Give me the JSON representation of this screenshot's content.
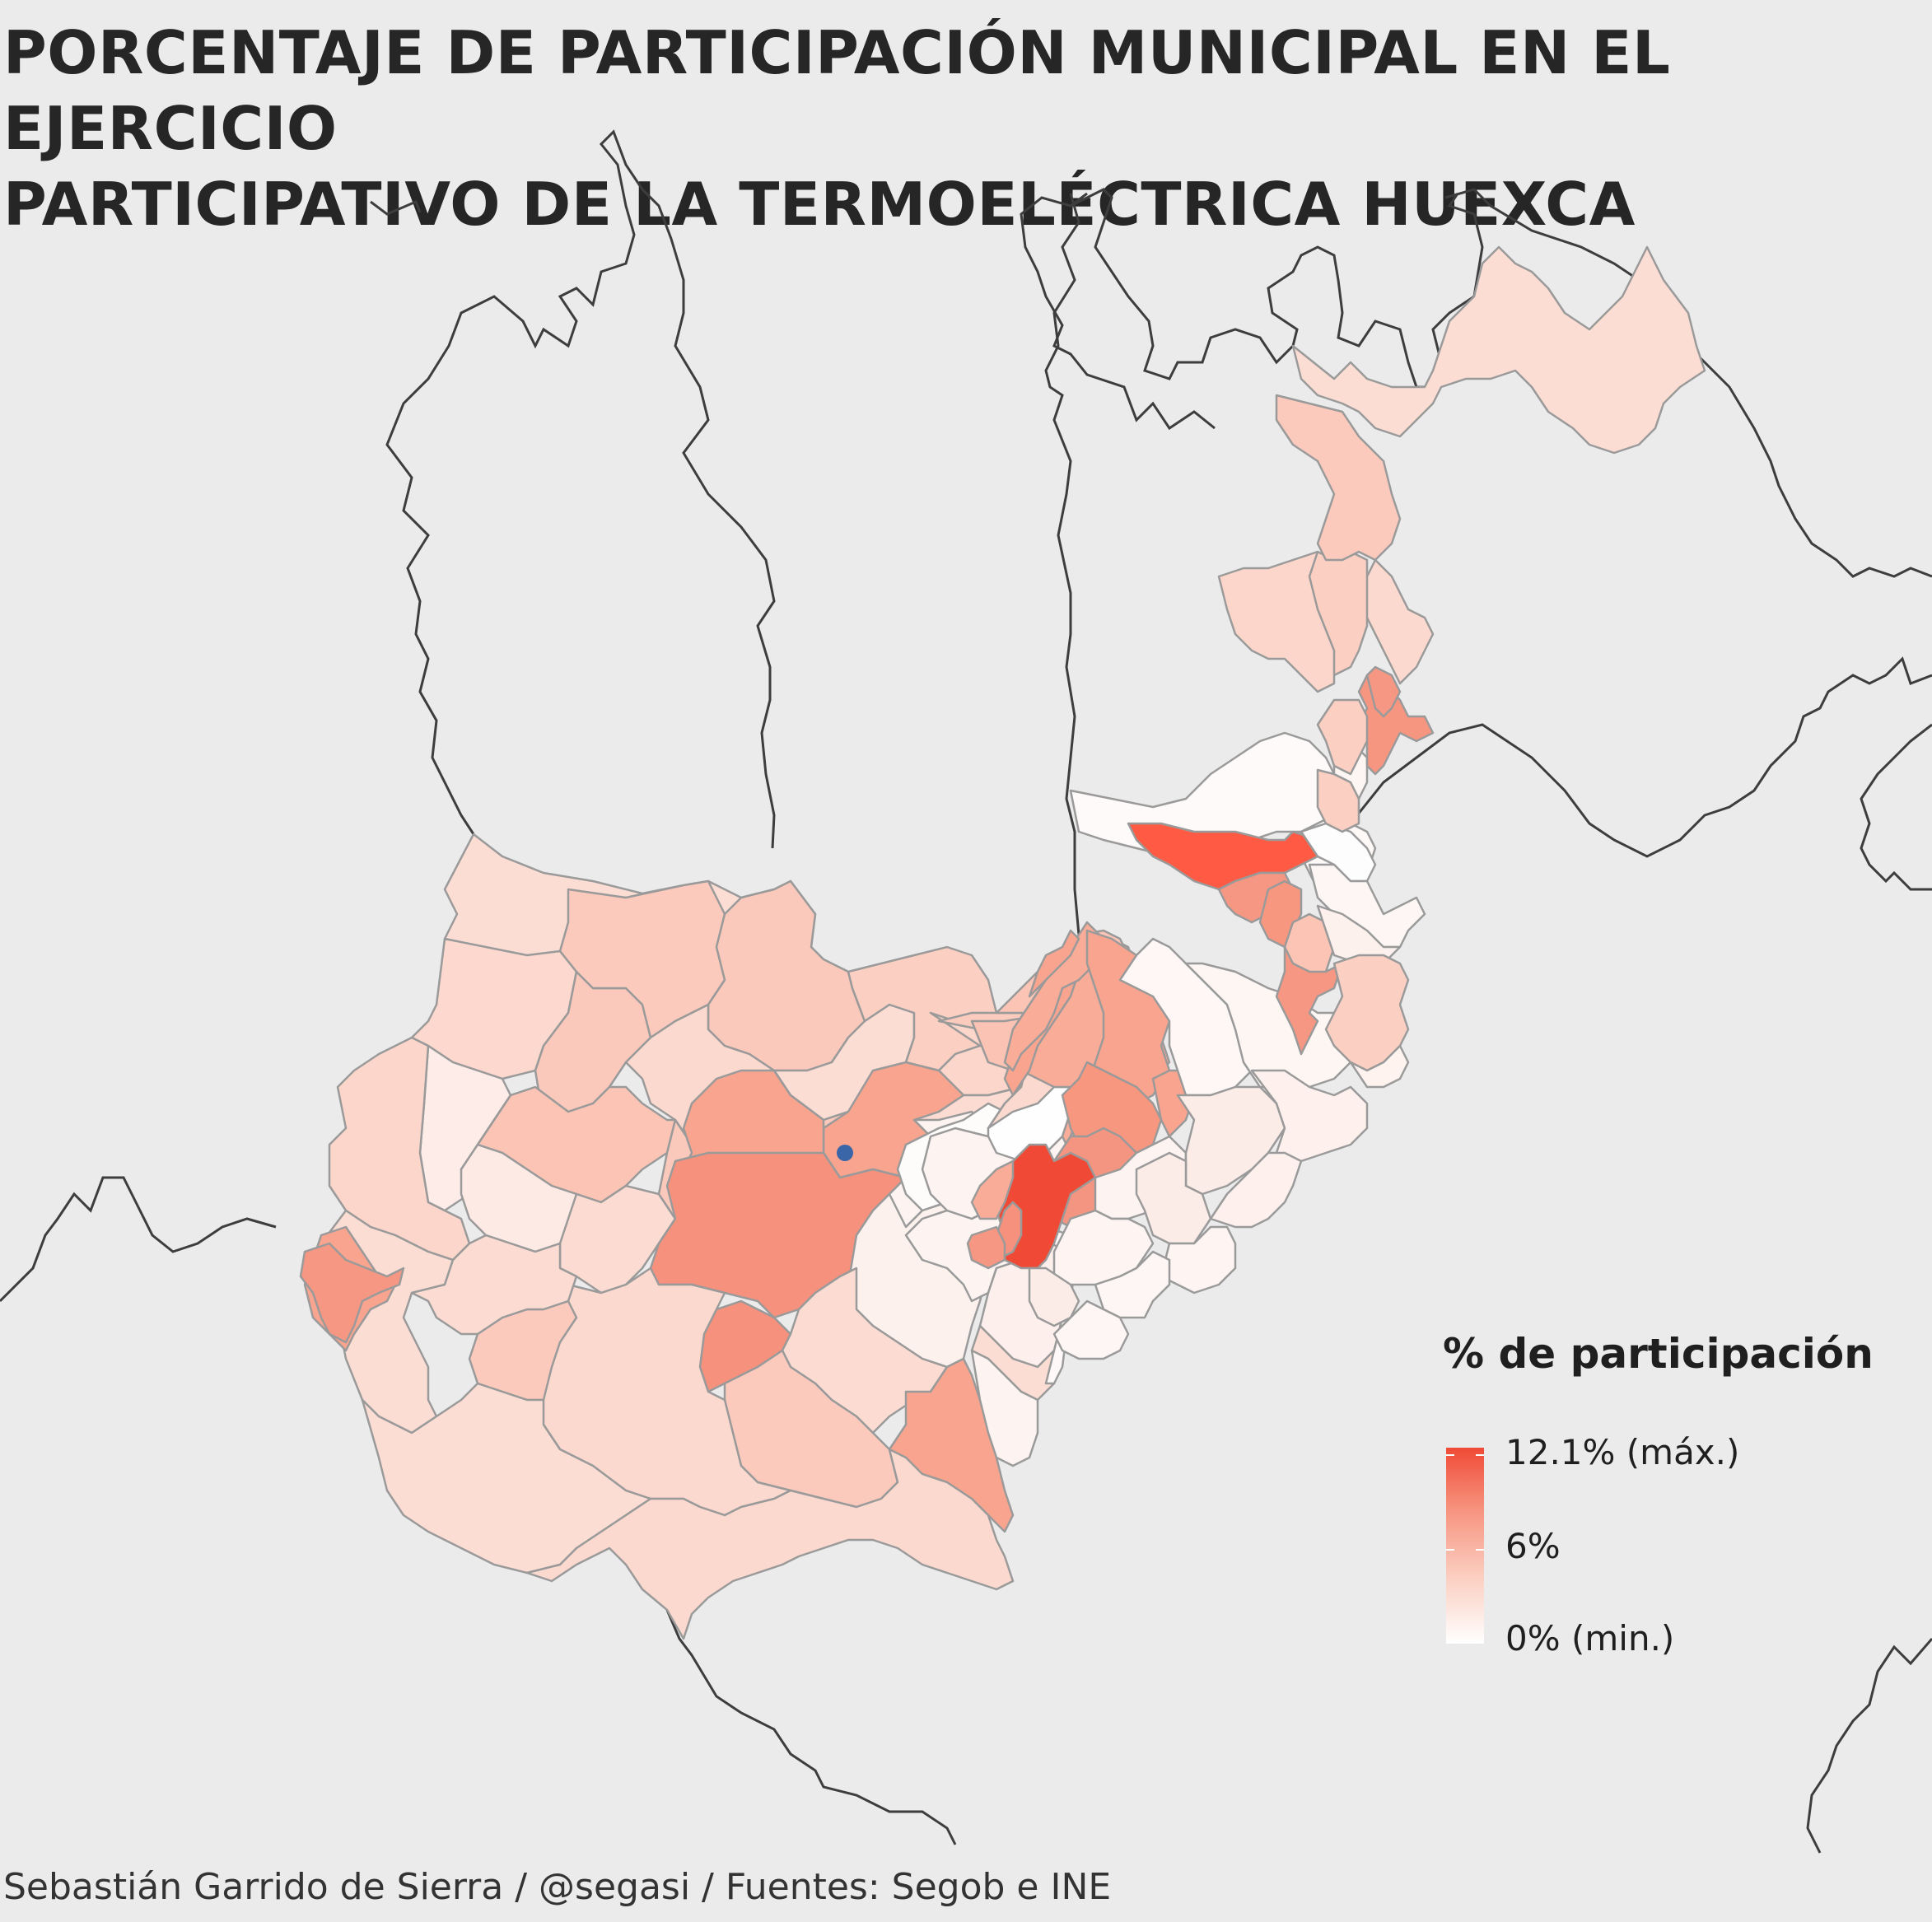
{
  "title_lines": [
    "PORCENTAJE DE PARTICIPACIÓN MUNICIPAL EN EL EJERCICIO",
    "PARTICIPATIVO DE LA TERMOELÉCTRICA HUEXCA"
  ],
  "legend": {
    "title": "% de participación",
    "labels": {
      "max": "12.1% (máx.)",
      "mid": "6%",
      "min": "0% (min.)"
    },
    "scale": {
      "min": 0,
      "mid": 6,
      "max": 12.1
    },
    "colors": {
      "low": "#ffffff",
      "mid": "#f6907b",
      "high": "#f04a36"
    }
  },
  "caption": "Sebastián Garrido de Sierra / @segasi / Fuentes: Segob e INE",
  "colors": {
    "background": "#ebebeb",
    "state_border": "#3d3d3d",
    "municipal_border": "#9a9a9a",
    "marker": "#3a66a8"
  }
}
